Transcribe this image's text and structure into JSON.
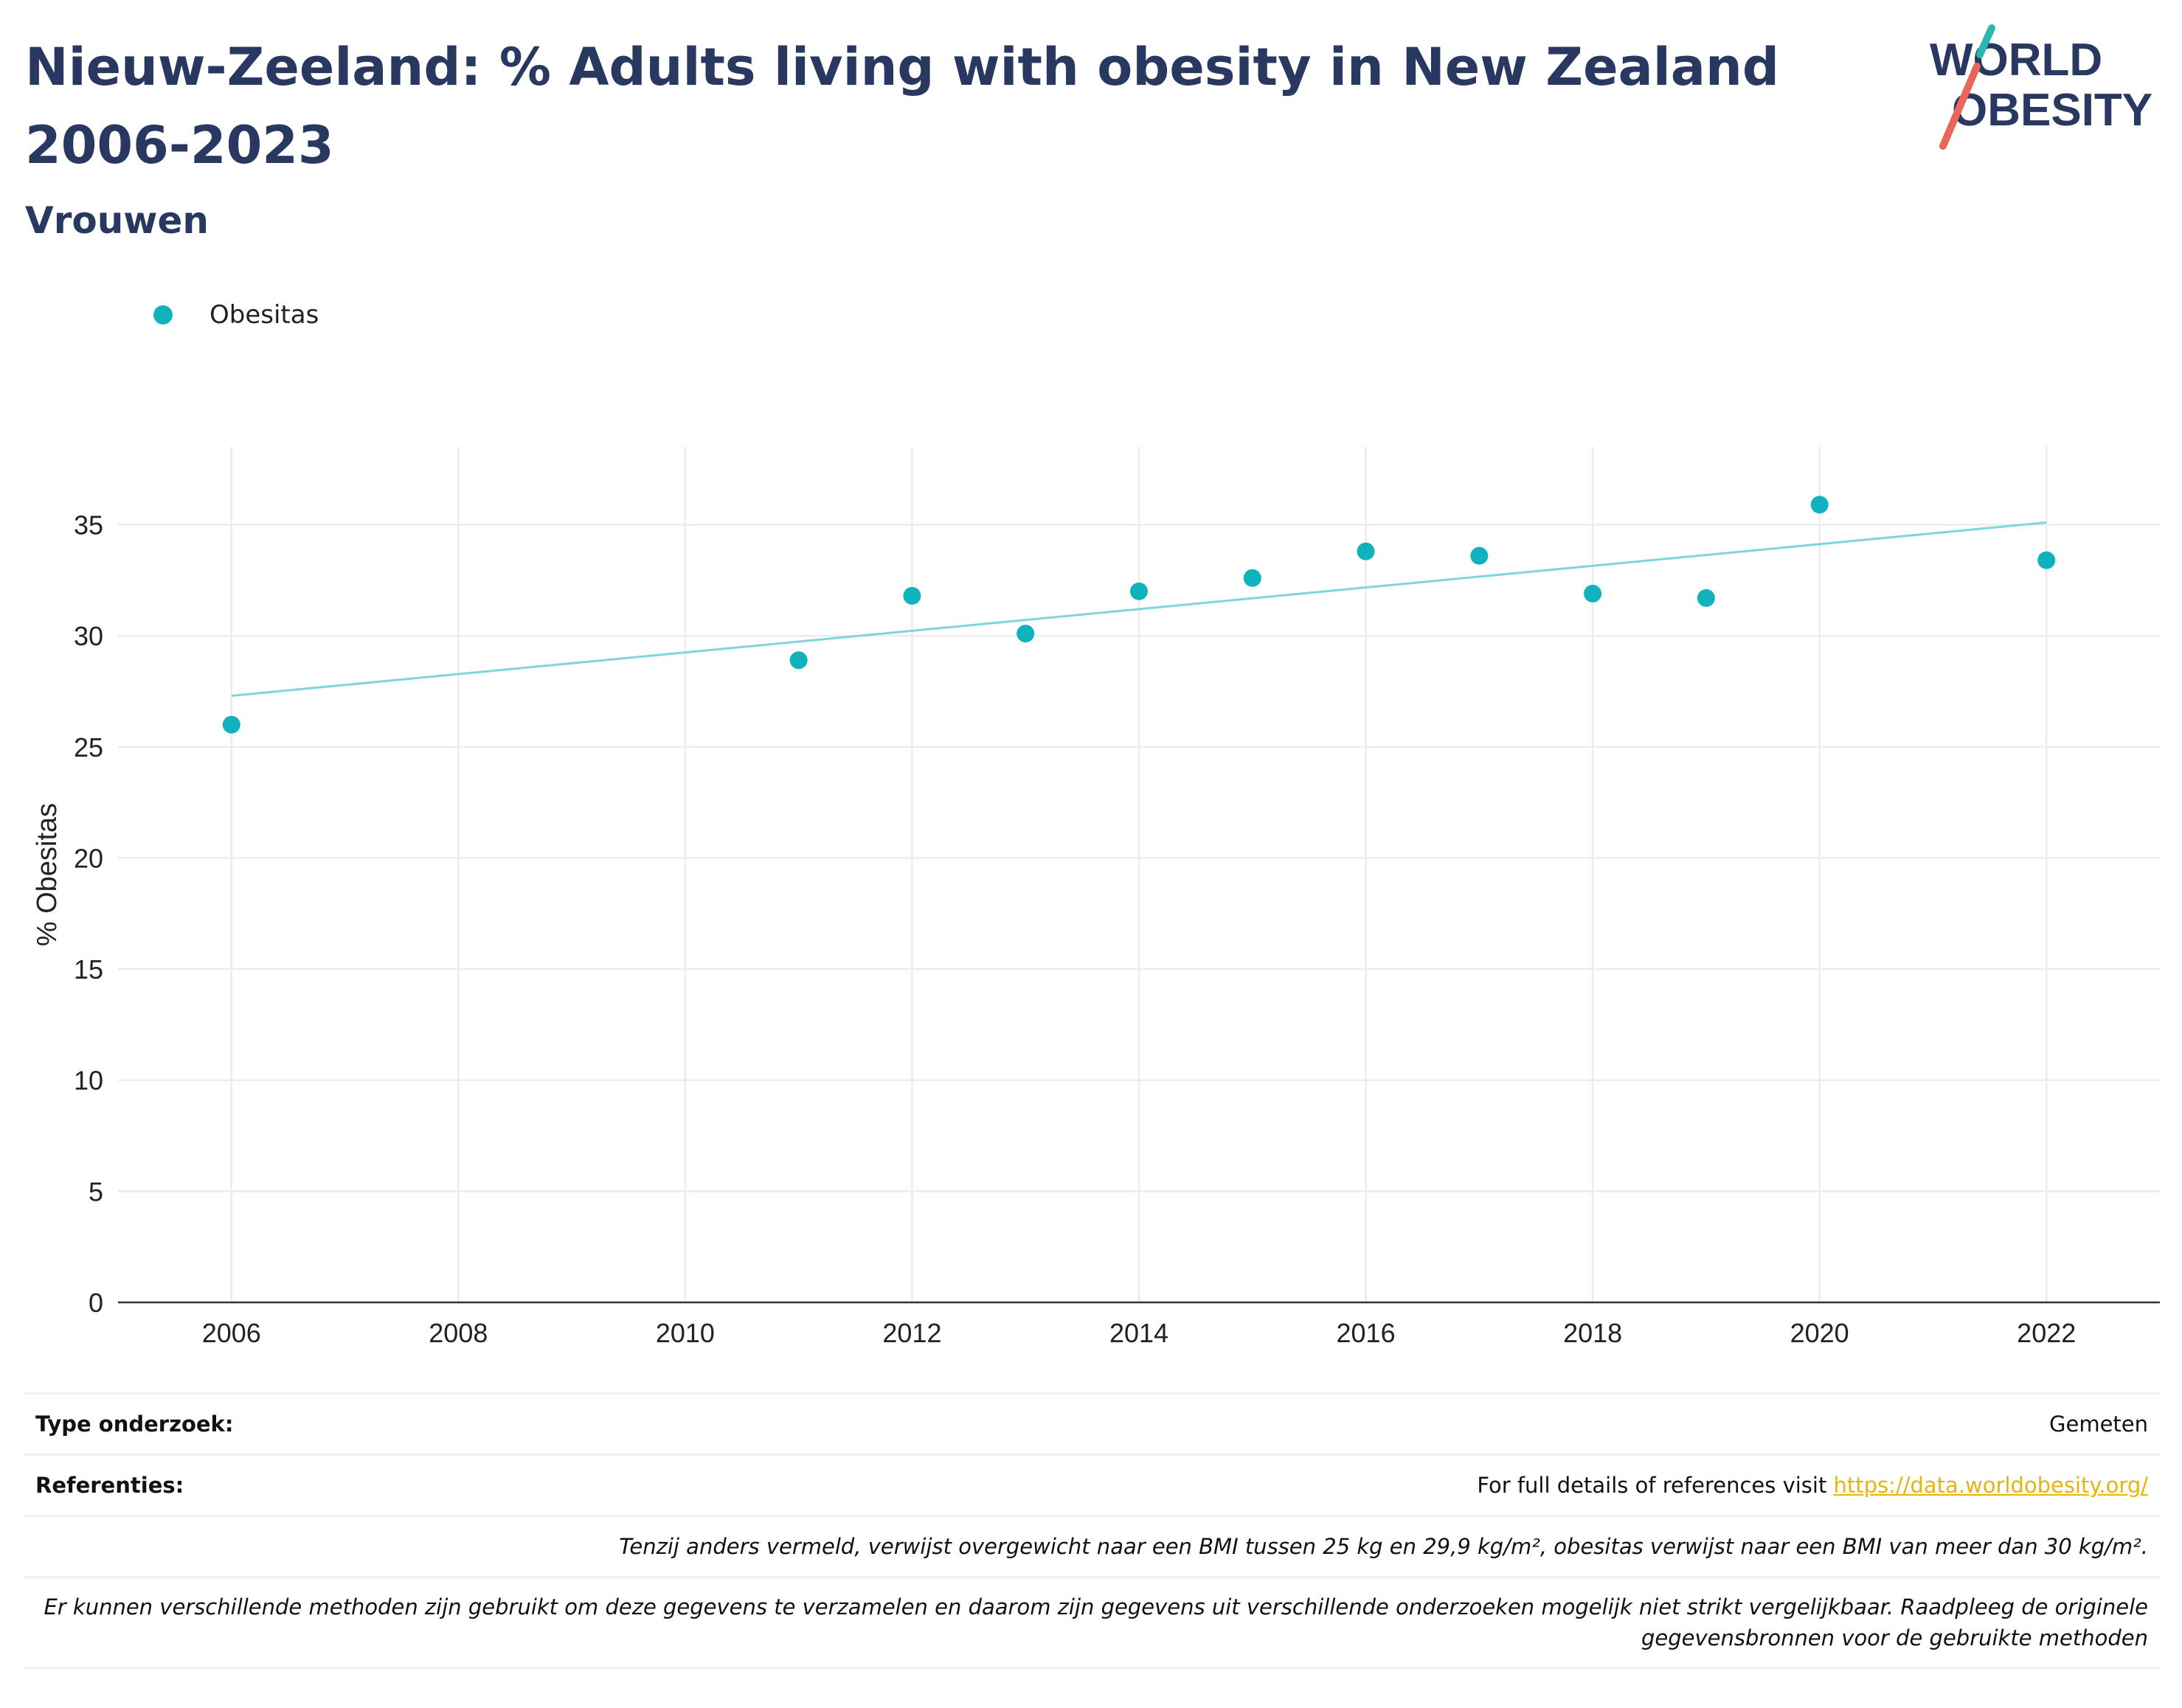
{
  "header": {
    "title": "Nieuw-Zeeland: % Adults living with obesity in New Zealand 2006-2023",
    "subtitle": "Vrouwen",
    "logo_line1": "WORLD",
    "logo_line2": "OBESITY"
  },
  "colors": {
    "title": "#283860",
    "series": "#10b3bd",
    "trend": "#7fd6da",
    "grid": "#ececec",
    "link": "#e6b40c",
    "logo_teal": "#2ab7b0",
    "logo_coral": "#e8675a"
  },
  "legend": {
    "items": [
      {
        "label": "Obesitas"
      }
    ]
  },
  "chart_data": {
    "type": "scatter",
    "title": "Nieuw-Zeeland: % Adults living with obesity in New Zealand 2006-2023",
    "subtitle": "Vrouwen",
    "xlabel": "",
    "ylabel": "% Obesitas",
    "xlim": [
      2005,
      2023
    ],
    "ylim": [
      0,
      38.5
    ],
    "x_ticks": [
      2006,
      2008,
      2010,
      2012,
      2014,
      2016,
      2018,
      2020,
      2022
    ],
    "y_ticks": [
      0,
      5,
      10,
      15,
      20,
      25,
      30,
      35
    ],
    "grid": true,
    "legend_position": "top-left",
    "series": [
      {
        "name": "Obesitas",
        "x": [
          2006,
          2011,
          2012,
          2013,
          2014,
          2015,
          2016,
          2017,
          2018,
          2019,
          2020,
          2022
        ],
        "y": [
          26.0,
          28.9,
          31.8,
          30.1,
          32.0,
          32.6,
          33.8,
          33.6,
          31.9,
          31.7,
          35.9,
          33.4
        ]
      }
    ],
    "trendline": {
      "x": [
        2006,
        2022
      ],
      "y": [
        27.3,
        35.1
      ]
    }
  },
  "footer": {
    "study_type_label": "Type onderzoek:",
    "study_type_value": "Gemeten",
    "references_label": "Referenties:",
    "references_text": "For full details of references visit",
    "references_link": "https://data.worldobesity.org/",
    "note_bmi": "Tenzij anders vermeld, verwijst overgewicht naar een BMI tussen 25 kg en 29,9 kg/m², obesitas verwijst naar een BMI van meer dan 30 kg/m².",
    "note_methods": "Er kunnen verschillende methoden zijn gebruikt om deze gegevens te verzamelen en daarom zijn gegevens uit verschillende onderzoeken mogelijk niet strikt vergelijkbaar. Raadpleeg de originele gegevensbronnen voor de gebruikte methoden"
  }
}
